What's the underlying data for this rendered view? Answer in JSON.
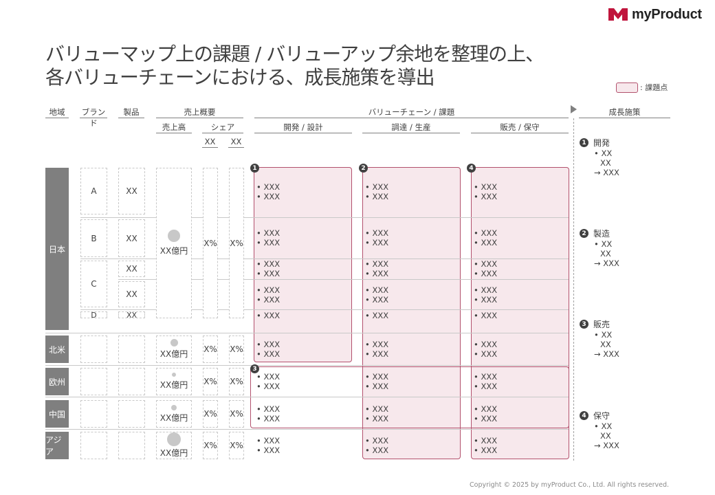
{
  "brand": {
    "name": "myProduct"
  },
  "title": {
    "line1": "バリューマップ上の課題 / バリューアップ余地を整理の上、",
    "line2": "各バリューチェーンにおける、成長施策を導出"
  },
  "legend": {
    "label": ": 課題点"
  },
  "headers": {
    "region": "地域",
    "brand": "ブランド",
    "product": "製品",
    "sales_overview": "売上概要",
    "sales": "売上高",
    "share": "シェア",
    "share_col1": "XX",
    "share_col2": "XX",
    "value_chain": "バリューチェーン / 課題",
    "dev": "開発 / 設計",
    "procure": "調達 / 生産",
    "sell": "販売 / 保守",
    "growth": "成長施策"
  },
  "regions": [
    "日本",
    "北米",
    "欧州",
    "中国",
    "アジア"
  ],
  "japan": {
    "brands": [
      "A",
      "B",
      "C",
      "D"
    ],
    "products": [
      "XX",
      "XX",
      "XX",
      "XX",
      "XX"
    ],
    "sales": "XX億円",
    "share1": "X%",
    "share2": "X%"
  },
  "other_rows": [
    {
      "sales": "XX億円",
      "share1": "X%",
      "share2": "X%"
    },
    {
      "sales": "XX億円",
      "share1": "X%",
      "share2": "X%"
    },
    {
      "sales": "XX億円",
      "share1": "X%",
      "share2": "X%"
    },
    {
      "sales": "XX億円",
      "share1": "X%",
      "share2": "X%"
    }
  ],
  "bullet": "• XXX",
  "issue_numbers": [
    "1",
    "2",
    "3",
    "4"
  ],
  "strategies": [
    {
      "num": "1",
      "title": "開発",
      "items": [
        "• XX",
        "XX",
        "→ XXX"
      ]
    },
    {
      "num": "2",
      "title": "製造",
      "items": [
        "• XX",
        "XX",
        "→ XXX"
      ]
    },
    {
      "num": "3",
      "title": "販売",
      "items": [
        "• XX",
        "XX",
        "→ XXX"
      ]
    },
    {
      "num": "4",
      "title": "保守",
      "items": [
        "• XX",
        "XX",
        "→ XXX"
      ]
    }
  ],
  "copyright": "Copyright © 2025 by myProduct Co., Ltd.  All rights reserved.",
  "colors": {
    "accent": "#b2506c",
    "issue_fill": "#f7e8ec",
    "region_fill": "#7f7f7f"
  }
}
